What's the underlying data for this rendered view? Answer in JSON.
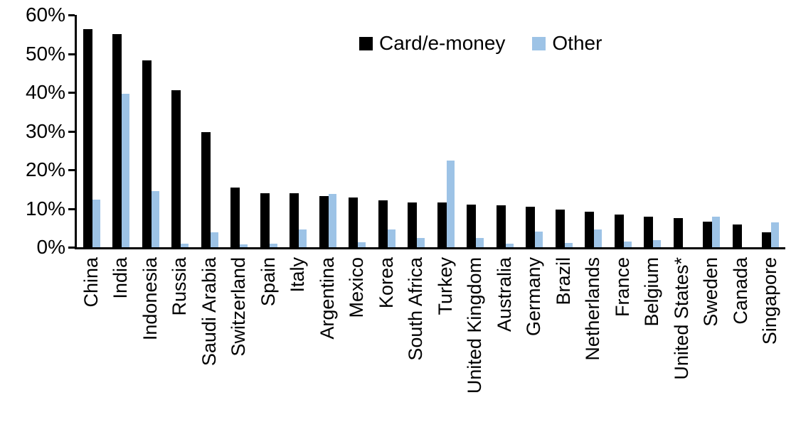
{
  "chart_data": {
    "type": "bar",
    "title": "",
    "categories": [
      "China",
      "India",
      "Indonesia",
      "Russia",
      "Saudi Arabia",
      "Switzerland",
      "Spain",
      "Italy",
      "Argentina",
      "Mexico",
      "Korea",
      "South Africa",
      "Turkey",
      "United Kingdom",
      "Australia",
      "Germany",
      "Brazil",
      "Netherlands",
      "France",
      "Belgium",
      "United States*",
      "Sweden",
      "Canada",
      "Singapore"
    ],
    "series": [
      {
        "name": "Card/e-money",
        "color": "#000000",
        "values": [
          56.3,
          55.0,
          48.3,
          40.6,
          29.8,
          15.5,
          14.0,
          13.9,
          13.3,
          12.9,
          12.2,
          11.6,
          11.6,
          11.1,
          10.8,
          10.5,
          9.8,
          9.1,
          8.4,
          7.9,
          7.6,
          6.6,
          5.9,
          3.9
        ]
      },
      {
        "name": "Other",
        "color": "#9DC3E6",
        "values": [
          12.3,
          39.7,
          14.5,
          0.9,
          3.8,
          0.7,
          1.0,
          4.5,
          13.7,
          1.3,
          4.5,
          2.4,
          22.4,
          2.4,
          1.0,
          4.0,
          1.1,
          4.6,
          1.4,
          1.8,
          0,
          7.9,
          0,
          6.5
        ]
      }
    ],
    "xlabel": "",
    "ylabel": "",
    "ylim": [
      0,
      60
    ],
    "ytick_step": 10,
    "yticks": [
      "0%",
      "10%",
      "20%",
      "30%",
      "40%",
      "50%",
      "60%"
    ],
    "grid": false,
    "legend_position": "top-center",
    "value_unit": "%"
  }
}
